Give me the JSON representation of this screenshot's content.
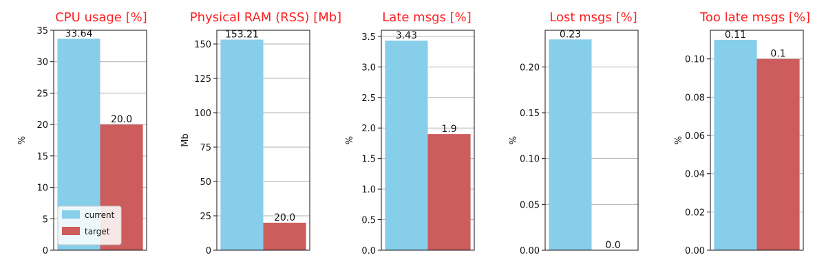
{
  "colors": {
    "current": "#87ceeb",
    "target": "#cd5c5c",
    "title": "#ff1f1f",
    "grid": "#b0b0b0"
  },
  "legend": {
    "items": [
      "current",
      "target"
    ],
    "placement": "lower-left",
    "panel": 0
  },
  "chart_data": [
    {
      "type": "bar",
      "title": "CPU usage [%]",
      "ylabel": "%",
      "ylim": [
        0,
        35
      ],
      "yticks": [
        0,
        5,
        10,
        15,
        20,
        25,
        30,
        35
      ],
      "tick_labels": [
        "0",
        "5",
        "10",
        "15",
        "20",
        "25",
        "30",
        "35"
      ],
      "categories": [
        "current",
        "target"
      ],
      "values": [
        33.64,
        20.0
      ],
      "data_labels": [
        "33.64",
        "20.0"
      ]
    },
    {
      "type": "bar",
      "title": "Physical RAM (RSS) [Mb]",
      "ylabel": "Mb",
      "ylim": [
        0,
        160
      ],
      "yticks": [
        0,
        25,
        50,
        75,
        100,
        125,
        150
      ],
      "tick_labels": [
        "0",
        "25",
        "50",
        "75",
        "100",
        "125",
        "150"
      ],
      "categories": [
        "current",
        "target"
      ],
      "values": [
        153.21,
        20.0
      ],
      "data_labels": [
        "153.21",
        "20.0"
      ]
    },
    {
      "type": "bar",
      "title": "Late msgs [%]",
      "ylabel": "%",
      "ylim": [
        0,
        3.6
      ],
      "yticks": [
        0,
        0.5,
        1.0,
        1.5,
        2.0,
        2.5,
        3.0,
        3.5
      ],
      "tick_labels": [
        "0.0",
        "0.5",
        "1.0",
        "1.5",
        "2.0",
        "2.5",
        "3.0",
        "3.5"
      ],
      "categories": [
        "current",
        "target"
      ],
      "values": [
        3.43,
        1.9
      ],
      "data_labels": [
        "3.43",
        "1.9"
      ]
    },
    {
      "type": "bar",
      "title": "Lost msgs [%]",
      "ylabel": "%",
      "ylim": [
        0,
        0.24
      ],
      "yticks": [
        0,
        0.05,
        0.1,
        0.15,
        0.2
      ],
      "tick_labels": [
        "0.00",
        "0.05",
        "0.10",
        "0.15",
        "0.20"
      ],
      "categories": [
        "current",
        "target"
      ],
      "values": [
        0.23,
        0.0
      ],
      "data_labels": [
        "0.23",
        "0.0"
      ]
    },
    {
      "type": "bar",
      "title": "Too late msgs [%]",
      "ylabel": "%",
      "ylim": [
        0,
        0.115
      ],
      "yticks": [
        0,
        0.02,
        0.04,
        0.06,
        0.08,
        0.1
      ],
      "tick_labels": [
        "0.00",
        "0.02",
        "0.04",
        "0.06",
        "0.08",
        "0.10"
      ],
      "categories": [
        "current",
        "target"
      ],
      "values": [
        0.11,
        0.1
      ],
      "data_labels": [
        "0.11",
        "0.1"
      ]
    }
  ]
}
